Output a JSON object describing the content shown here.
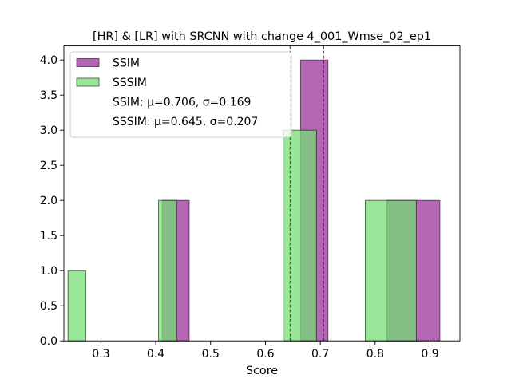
{
  "chart_data": {
    "type": "histogram",
    "title": "[HR] & [LR] with SRCNN with change 4_001_Wmse_02_ep1",
    "xlabel": "Score",
    "ylabel": "",
    "xlim": [
      0.2325,
      0.9545
    ],
    "ylim": [
      0,
      4.2
    ],
    "xticks": [
      0.3,
      0.4,
      0.5,
      0.6,
      0.7,
      0.8,
      0.9
    ],
    "xtick_labels": [
      "0.3",
      "0.4",
      "0.5",
      "0.6",
      "0.7",
      "0.8",
      "0.9"
    ],
    "yticks": [
      0.0,
      0.5,
      1.0,
      1.5,
      2.0,
      2.5,
      3.0,
      3.5,
      4.0
    ],
    "ytick_labels": [
      "0.0",
      "0.5",
      "1.0",
      "1.5",
      "2.0",
      "2.5",
      "3.0",
      "3.5",
      "4.0"
    ],
    "grid": false,
    "legend_position": "top-left",
    "series": [
      {
        "name": "SSIM",
        "color": "#800080",
        "bins": [
          {
            "x0": 0.412,
            "x1": 0.461,
            "count": 2
          },
          {
            "x0": 0.664,
            "x1": 0.714,
            "count": 4
          },
          {
            "x0": 0.821,
            "x1": 0.918,
            "count": 2
          }
        ],
        "mean": 0.706,
        "std": 0.169
      },
      {
        "name": "SSSIM",
        "color": "#77dd77",
        "bins": [
          {
            "x0": 0.24,
            "x1": 0.2725,
            "count": 1
          },
          {
            "x0": 0.405,
            "x1": 0.438,
            "count": 2
          },
          {
            "x0": 0.632,
            "x1": 0.693,
            "count": 3
          },
          {
            "x0": 0.782,
            "x1": 0.875,
            "count": 2
          }
        ],
        "mean": 0.645,
        "std": 0.207
      }
    ],
    "mean_lines": [
      {
        "series": "SSSIM",
        "value": 0.645,
        "color": "#008000"
      },
      {
        "series": "SSIM",
        "value": 0.706,
        "color": "#800080"
      }
    ],
    "legend": [
      {
        "label": "SSIM",
        "swatch": "SSIM"
      },
      {
        "label": "SSSIM",
        "swatch": "SSSIM"
      },
      {
        "label": "SSIM: μ=0.706, σ=0.169",
        "swatch": ""
      },
      {
        "label": "SSSIM: μ=0.645, σ=0.207",
        "swatch": ""
      }
    ]
  }
}
